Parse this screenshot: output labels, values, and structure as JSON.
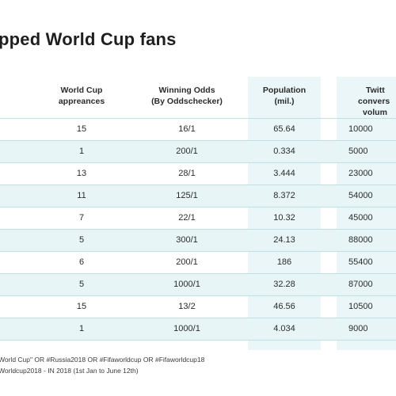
{
  "title": "pped World Cup fans",
  "headers": {
    "appearances": [
      "World Cup",
      "appreances"
    ],
    "odds": [
      "Winning Odds",
      "(By Oddschecker)"
    ],
    "population": [
      "Population",
      "(mil.)"
    ],
    "twitter": [
      "Twitt",
      "convers",
      "volum"
    ]
  },
  "rows": [
    {
      "appearances": "15",
      "odds": "16/1",
      "population": "65.64",
      "twitter": "10000"
    },
    {
      "appearances": "1",
      "odds": "200/1",
      "population": "0.334",
      "twitter": "5000"
    },
    {
      "appearances": "13",
      "odds": "28/1",
      "population": "3.444",
      "twitter": "23000"
    },
    {
      "appearances": "11",
      "odds": "125/1",
      "population": "8.372",
      "twitter": "54000"
    },
    {
      "appearances": "7",
      "odds": "22/1",
      "population": "10.32",
      "twitter": "45000"
    },
    {
      "appearances": "5",
      "odds": "300/1",
      "population": "24.13",
      "twitter": "88000"
    },
    {
      "appearances": "6",
      "odds": "200/1",
      "population": "186",
      "twitter": "55400"
    },
    {
      "appearances": "5",
      "odds": "1000/1",
      "population": "32.28",
      "twitter": "87000"
    },
    {
      "appearances": "15",
      "odds": "13/2",
      "population": "46.56",
      "twitter": "10500"
    },
    {
      "appearances": "1",
      "odds": "1000/1",
      "population": "4.034",
      "twitter": "9000"
    }
  ],
  "footnotes": [
    "World Cup\" OR #Russia2018 OR #Fifaworldcup OR #Fifaworldcup18",
    "Worldcup2018 - IN 2018 (1st Jan to June 12th)"
  ],
  "colors": {
    "band": "#e8f5f7",
    "line": "#bfe0e6"
  }
}
